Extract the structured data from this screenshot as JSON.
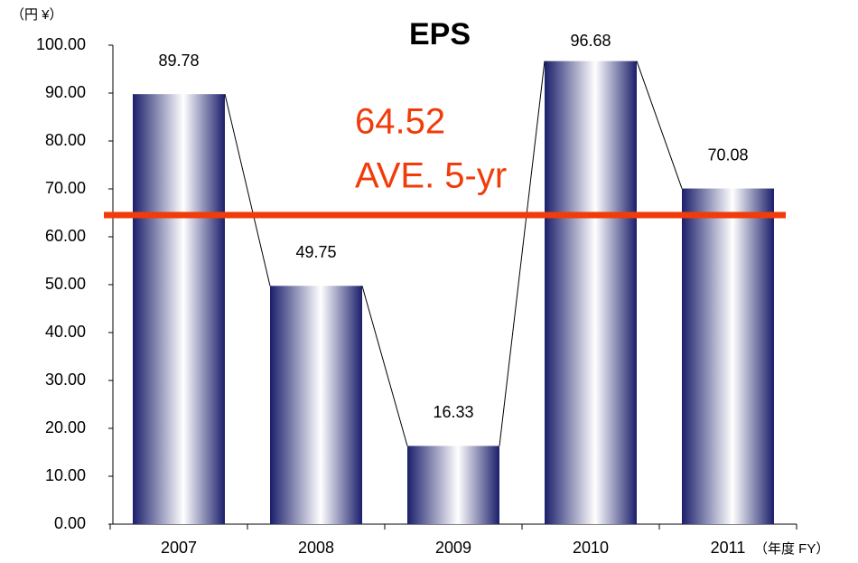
{
  "chart_data": {
    "type": "bar",
    "title": "EPS",
    "y_unit": "（円 ¥）",
    "x_unit": "（年度 FY）",
    "categories": [
      "2007",
      "2008",
      "2009",
      "2010",
      "2011"
    ],
    "values": [
      89.78,
      49.75,
      16.33,
      96.68,
      70.08
    ],
    "color": "#1b1f6b",
    "average": {
      "value": 64.52,
      "label": "AVE. 5-yr",
      "color": "#f03c0a"
    },
    "ylim": [
      0,
      100
    ],
    "yticks": [
      {
        "value": 0,
        "label": "0.00"
      },
      {
        "value": 10,
        "label": "10.00"
      },
      {
        "value": 20,
        "label": "20.00"
      },
      {
        "value": 30,
        "label": "30.00"
      },
      {
        "value": 40,
        "label": "40.00"
      },
      {
        "value": 50,
        "label": "50.00"
      },
      {
        "value": 60,
        "label": "60.00"
      },
      {
        "value": 70,
        "label": "70.00"
      },
      {
        "value": 80,
        "label": "80.00"
      },
      {
        "value": 90,
        "label": "90.00"
      },
      {
        "value": 100,
        "label": "100.00"
      }
    ]
  }
}
